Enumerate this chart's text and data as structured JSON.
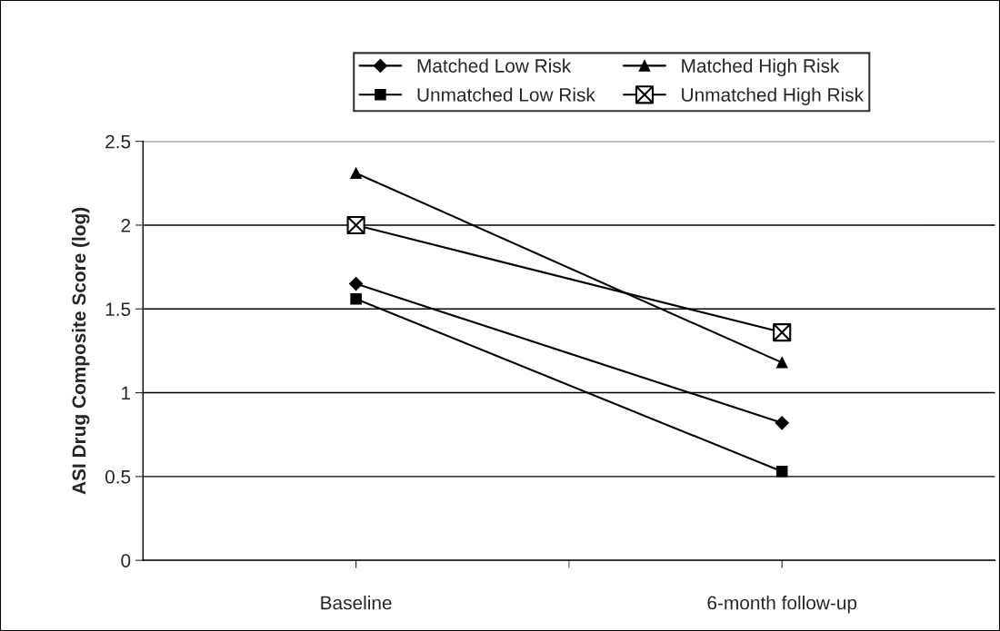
{
  "chart_data": {
    "type": "line",
    "ylabel": "ASI Drug Composite Score (log)",
    "categories": [
      "Baseline",
      "6-month follow-up"
    ],
    "series": [
      {
        "name": "Matched Low Risk",
        "color": "#000000",
        "marker": "diamond",
        "values": [
          1.65,
          0.82
        ]
      },
      {
        "name": "Unmatched Low Risk",
        "color": "#000000",
        "marker": "square",
        "values": [
          1.56,
          0.53
        ]
      },
      {
        "name": "Matched High Risk",
        "color": "#000000",
        "marker": "triangle",
        "values": [
          2.31,
          1.18
        ]
      },
      {
        "name": "Unmatched High Risk",
        "color": "#000000",
        "marker": "cross",
        "values": [
          2.0,
          1.36
        ]
      }
    ],
    "ylim": [
      0,
      2.5
    ],
    "yticks": [
      0,
      0.5,
      1,
      1.5,
      2,
      2.5
    ],
    "grid": "y",
    "legend": "top",
    "line_style": "solid"
  }
}
